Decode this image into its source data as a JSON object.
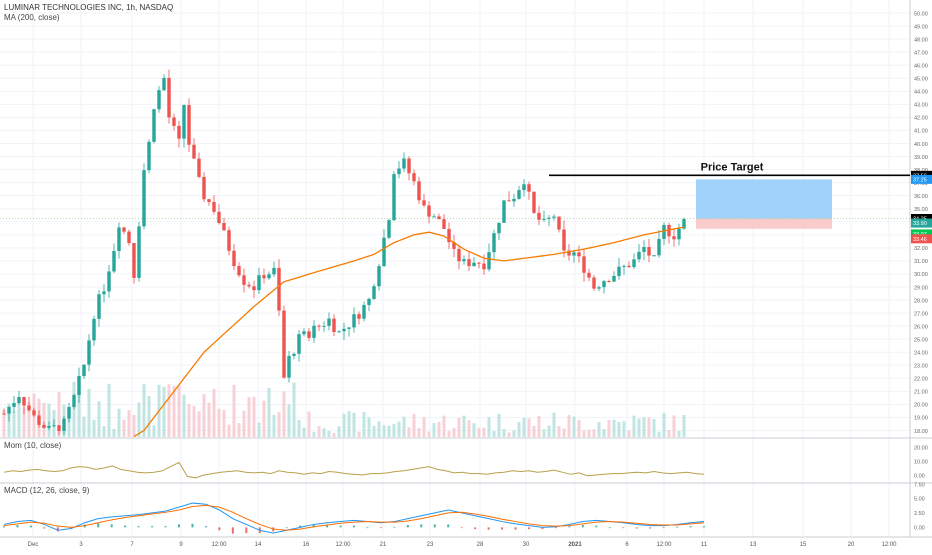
{
  "header": {
    "symbol_line": "LUMINAR TECHNOLOGIES INC, 1h, NASDAQ",
    "ma_label": "MA (200, close)",
    "mom_label": "Mom (10, close)",
    "macd_label": "MACD (12, 26, close, 9)"
  },
  "annotation": {
    "text": "Price Target"
  },
  "colors": {
    "up": "#26a69a",
    "down": "#ef5350",
    "ma": "#f57c00",
    "mom": "#b8a04a",
    "macd_line": "#2196f3",
    "signal_line": "#ff6d00",
    "target_zone": "#90caf9",
    "stop_zone": "#f8c6c6",
    "price_target_line": "#000000",
    "grid": "#f0f3fa"
  },
  "chart_data": [
    {
      "type": "candlestick",
      "title": "LUMINAR TECHNOLOGIES INC, 1h, NASDAQ",
      "ylim": [
        17.5,
        51
      ],
      "y_ticks": [
        "18.00",
        "19.00",
        "20.00",
        "21.00",
        "22.00",
        "23.00",
        "24.00",
        "25.00",
        "26.00",
        "27.00",
        "28.00",
        "29.00",
        "30.00",
        "31.00",
        "32.00",
        "33.00",
        "34.00",
        "35.00",
        "36.00",
        "37.00",
        "38.00",
        "39.00",
        "40.00",
        "41.00",
        "42.00",
        "43.00",
        "44.00",
        "45.00",
        "46.00",
        "47.00",
        "48.00",
        "49.00",
        "50.00"
      ],
      "price_labels": [
        {
          "text": "37.56",
          "value": 37.56,
          "color": "#000000"
        },
        {
          "text": "37.25",
          "value": 37.25,
          "color": "#2196f3"
        },
        {
          "text": "34.25",
          "value": 34.25,
          "color": "#000000"
        },
        {
          "text": "33.90",
          "value": 33.9,
          "color": "#26a69a"
        },
        {
          "text": "33.07",
          "value": 33.07,
          "color": "#00c853"
        },
        {
          "text": "33.46",
          "value": 33.46,
          "color": "#ef5350"
        }
      ],
      "x_labels": [
        "Dec",
        "3",
        "7",
        "9",
        "12:00",
        "14",
        "16",
        "12:00",
        "21",
        "23",
        "28",
        "30",
        "2021",
        "6",
        "12:00",
        "11",
        "13",
        "15",
        "20",
        "12:00"
      ],
      "close_path": [
        [
          0,
          19.3
        ],
        [
          3,
          20.8
        ],
        [
          6,
          19.0
        ],
        [
          9,
          18.0
        ],
        [
          12,
          18.5
        ],
        [
          14,
          20.5
        ],
        [
          16,
          23.0
        ],
        [
          18,
          27.0
        ],
        [
          20,
          29.0
        ],
        [
          22,
          32.0
        ],
        [
          23,
          34.0
        ],
        [
          25,
          32.5
        ],
        [
          26,
          30.0
        ],
        [
          28,
          38.0
        ],
        [
          29,
          40.0
        ],
        [
          30,
          43.0
        ],
        [
          32,
          45.0
        ],
        [
          33,
          42.0
        ],
        [
          35,
          40.0
        ],
        [
          36,
          43.0
        ],
        [
          37,
          40.0
        ],
        [
          39,
          37.0
        ],
        [
          40,
          36.0
        ],
        [
          42,
          35.0
        ],
        [
          44,
          33.0
        ],
        [
          46,
          31.0
        ],
        [
          48,
          29.5
        ],
        [
          50,
          29.0
        ],
        [
          52,
          30.0
        ],
        [
          54,
          30.2
        ],
        [
          55,
          27.0
        ],
        [
          56,
          22.0
        ],
        [
          57,
          23.5
        ],
        [
          59,
          25.0
        ],
        [
          61,
          25.5
        ],
        [
          63,
          26.0
        ],
        [
          65,
          26.5
        ],
        [
          67,
          25.5
        ],
        [
          69,
          26.2
        ],
        [
          71,
          27.0
        ],
        [
          73,
          28.0
        ],
        [
          75,
          31.0
        ],
        [
          77,
          34.5
        ],
        [
          78,
          38.0
        ],
        [
          80,
          38.5
        ],
        [
          82,
          37.0
        ],
        [
          84,
          35.0
        ],
        [
          86,
          34.5
        ],
        [
          88,
          33.5
        ],
        [
          90,
          31.5
        ],
        [
          92,
          30.8
        ],
        [
          94,
          31.0
        ],
        [
          96,
          30.8
        ],
        [
          98,
          33.0
        ],
        [
          100,
          35.5
        ],
        [
          102,
          36.0
        ],
        [
          104,
          37.3
        ],
        [
          106,
          34.5
        ],
        [
          108,
          33.8
        ],
        [
          110,
          34.5
        ],
        [
          112,
          31.5
        ],
        [
          114,
          31.6
        ],
        [
          116,
          30.5
        ],
        [
          118,
          29.0
        ],
        [
          120,
          29.6
        ],
        [
          122,
          30.0
        ],
        [
          124,
          30.5
        ],
        [
          126,
          31.0
        ],
        [
          128,
          32.0
        ],
        [
          130,
          31.0
        ],
        [
          132,
          33.5
        ],
        [
          134,
          33.0
        ],
        [
          136,
          34.0
        ]
      ],
      "ma200_path": [
        [
          0,
          11.5
        ],
        [
          28,
          18.0
        ],
        [
          40,
          24.0
        ],
        [
          50,
          27.5
        ],
        [
          56,
          29.4
        ],
        [
          62,
          30.1
        ],
        [
          70,
          31.0
        ],
        [
          74,
          31.5
        ],
        [
          78,
          32.4
        ],
        [
          82,
          33.0
        ],
        [
          85,
          33.2
        ],
        [
          88,
          32.9
        ],
        [
          92,
          31.9
        ],
        [
          96,
          31.2
        ],
        [
          100,
          31.0
        ],
        [
          104,
          31.2
        ],
        [
          110,
          31.5
        ],
        [
          116,
          31.9
        ],
        [
          122,
          32.4
        ],
        [
          128,
          33.0
        ],
        [
          132,
          33.3
        ],
        [
          136,
          33.6
        ]
      ],
      "price_target": {
        "value": 37.56,
        "label": "Price Target"
      },
      "target_zone": [
        34.25,
        37.25
      ],
      "stop_zone": [
        33.46,
        34.25
      ]
    },
    {
      "type": "line",
      "title": "Mom (10, close)",
      "ylim": [
        -5,
        25
      ],
      "y_ticks": [
        "20.00",
        "10.00",
        "0.00"
      ],
      "series": [
        {
          "values": [
            2.0,
            3.0,
            2.5,
            3.5,
            4.0,
            3.0,
            2.5,
            3.0,
            5.0,
            6.0,
            5.5,
            4.0,
            5.0,
            6.5,
            4.0,
            3.0,
            2.0,
            1.5,
            2.0,
            3.0,
            6.0,
            9.0,
            -1.0,
            -2.0,
            0.0,
            1.0,
            2.0,
            2.5,
            3.0,
            2.0,
            1.5,
            2.0,
            1.0,
            3.0,
            2.0,
            1.5,
            0.5,
            1.5,
            1.0,
            2.5,
            2.0,
            1.0,
            0.5,
            0.0,
            1.0,
            1.0,
            1.5,
            2.5,
            3.0,
            4.0,
            5.0,
            6.0,
            4.0,
            3.0,
            1.5,
            2.0,
            1.0,
            1.0,
            0.5,
            1.5,
            2.0,
            3.0,
            2.5,
            3.0,
            2.0,
            2.5,
            3.5,
            2.0,
            0.5,
            1.5,
            -0.5,
            0.0,
            0.5,
            1.0,
            1.0,
            1.5,
            2.0,
            1.5,
            2.5,
            1.5,
            1.0,
            1.5,
            2.0,
            1.0,
            0.5
          ]
        }
      ]
    },
    {
      "type": "line",
      "title": "MACD (12, 26, close, 9)",
      "ylim": [
        -1.5,
        7.5
      ],
      "y_ticks": [
        "7.50",
        "5.00",
        "2.50",
        "0.00"
      ],
      "series": [
        {
          "values": [
            0.5,
            1.0,
            1.2,
            0.5,
            -0.5,
            -0.2,
            0.8,
            1.5,
            1.8,
            2.0,
            2.2,
            2.5,
            2.8,
            3.5,
            4.2,
            4.0,
            3.0,
            1.5,
            0.5,
            -0.5,
            -1.0,
            -0.5,
            0.0,
            0.5,
            0.8,
            1.0,
            1.2,
            1.0,
            0.8,
            1.0,
            1.5,
            2.0,
            2.5,
            3.0,
            2.5,
            2.0,
            1.5,
            1.0,
            0.6,
            0.3,
            0.0,
            0.1,
            0.5,
            1.0,
            1.2,
            1.0,
            0.8,
            0.5,
            0.3,
            0.3,
            0.5,
            0.8,
            1.0
          ]
        },
        {
          "values": [
            0.3,
            0.6,
            0.9,
            0.7,
            0.2,
            0.0,
            0.3,
            0.8,
            1.3,
            1.7,
            2.0,
            2.3,
            2.6,
            3.0,
            3.6,
            3.8,
            3.5,
            2.6,
            1.5,
            0.5,
            -0.3,
            -0.5,
            -0.3,
            0.1,
            0.4,
            0.7,
            0.9,
            1.0,
            0.9,
            0.9,
            1.1,
            1.5,
            2.0,
            2.5,
            2.6,
            2.3,
            1.9,
            1.4,
            1.0,
            0.6,
            0.3,
            0.2,
            0.3,
            0.6,
            0.9,
            1.0,
            0.9,
            0.7,
            0.5,
            0.4,
            0.4,
            0.6,
            0.8
          ]
        }
      ]
    }
  ]
}
